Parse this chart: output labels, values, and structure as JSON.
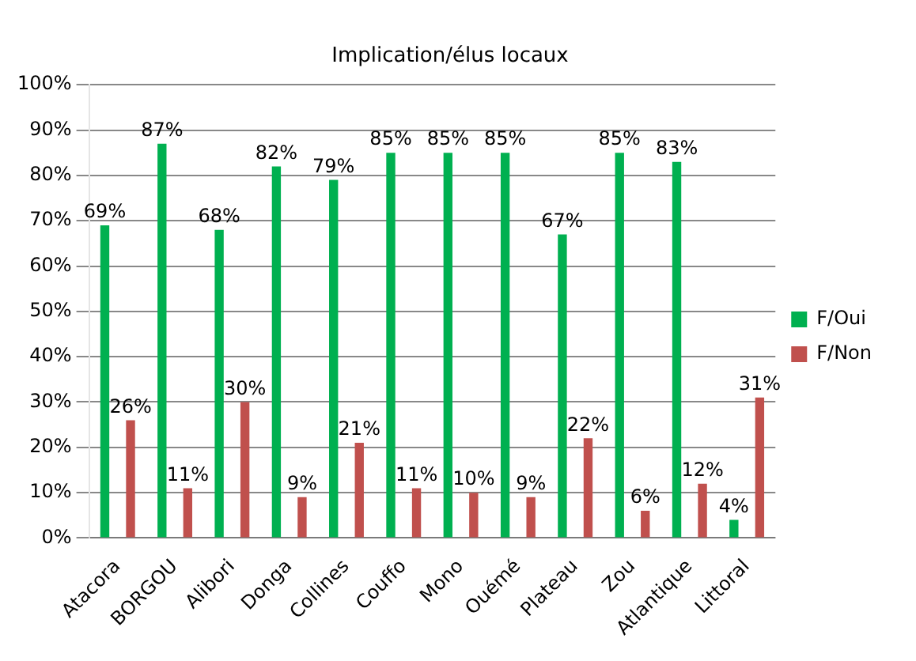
{
  "chart_data": {
    "type": "bar",
    "title": "Implication/élus locaux",
    "categories": [
      "Atacora",
      "BORGOU",
      "Alibori",
      "Donga",
      "Collines",
      "Couffo",
      "Mono",
      "Ouémé",
      "Plateau",
      "Zou",
      "Atlantique",
      "Littoral"
    ],
    "series": [
      {
        "name": "F/Oui",
        "color": "#00b050",
        "values": [
          69,
          87,
          68,
          82,
          79,
          85,
          85,
          85,
          67,
          85,
          83,
          4
        ],
        "value_labels": [
          "69%",
          "87%",
          "68%",
          "82%",
          "79%",
          "85%",
          "85%",
          "85%",
          "67%",
          "85%",
          "83%",
          "4%"
        ]
      },
      {
        "name": "F/Non",
        "color": "#c0504d",
        "values": [
          26,
          11,
          30,
          9,
          21,
          11,
          10,
          9,
          22,
          6,
          12,
          31
        ],
        "value_labels": [
          "26%",
          "11%",
          "30%",
          "9%",
          "21%",
          "11%",
          "10%",
          "9%",
          "22%",
          "6%",
          "12%",
          "31%"
        ]
      }
    ],
    "ylim": [
      0,
      100
    ],
    "yticks": [
      {
        "value": 0,
        "label": "0%"
      },
      {
        "value": 10,
        "label": "10%"
      },
      {
        "value": 20,
        "label": "20%"
      },
      {
        "value": 30,
        "label": "30%"
      },
      {
        "value": 40,
        "label": "40%"
      },
      {
        "value": 50,
        "label": "50%"
      },
      {
        "value": 60,
        "label": "60%"
      },
      {
        "value": 70,
        "label": "70%"
      },
      {
        "value": 80,
        "label": "80%"
      },
      {
        "value": 90,
        "label": "90%"
      },
      {
        "value": 100,
        "label": "100%"
      }
    ],
    "grid": "y",
    "legend": "right"
  }
}
